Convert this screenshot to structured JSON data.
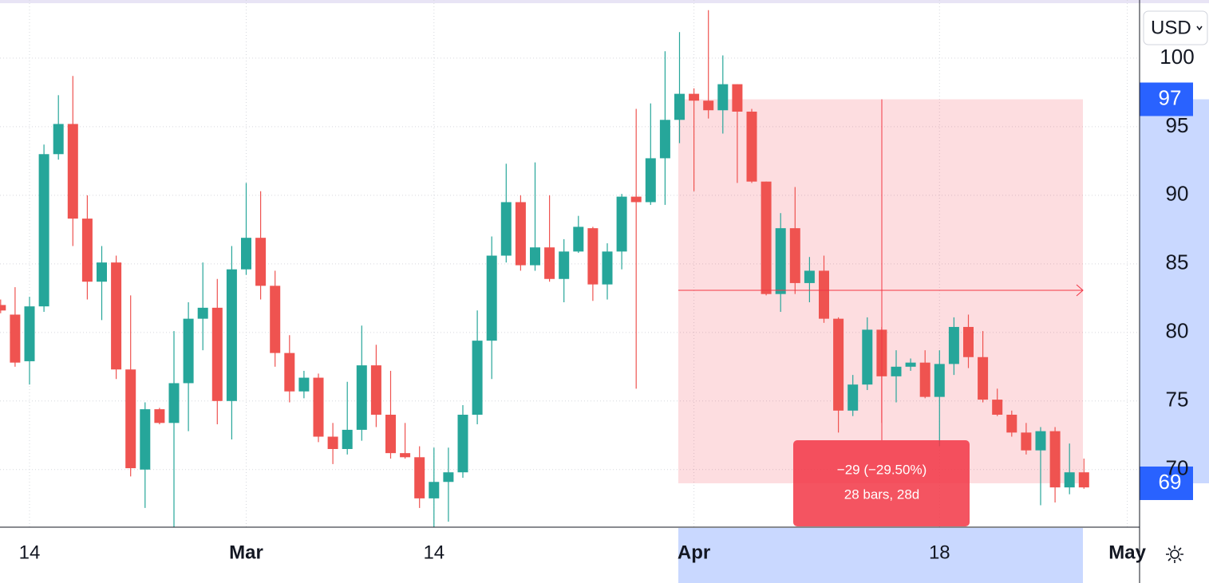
{
  "chart_data": {
    "type": "candlestick",
    "categories": [
      null,
      null,
      "14",
      null,
      null,
      null,
      null,
      null,
      null,
      null,
      null,
      null,
      null,
      null,
      null,
      null,
      null,
      "Mar",
      null,
      null,
      null,
      null,
      null,
      null,
      null,
      null,
      null,
      null,
      null,
      null,
      "14",
      null,
      null,
      null,
      null,
      null,
      null,
      null,
      null,
      null,
      null,
      null,
      null,
      null,
      null,
      null,
      null,
      null,
      "Apr",
      null,
      null,
      null,
      null,
      null,
      null,
      null,
      null,
      null,
      null,
      null,
      null,
      null,
      null,
      null,
      null,
      "18",
      null,
      null,
      null,
      null,
      null,
      null,
      null,
      null,
      null,
      null,
      null,
      null,
      "May"
    ],
    "open": [
      82.0,
      81.3,
      77.9,
      81.9,
      93.0,
      95.2,
      88.3,
      83.7,
      85.1,
      77.3,
      70.0,
      74.4,
      73.4,
      76.3,
      81.0,
      81.8,
      75.0,
      84.6,
      86.9,
      83.4,
      78.5,
      75.7,
      76.7,
      72.4,
      71.5,
      72.9,
      77.6,
      74.0,
      71.2,
      70.9,
      67.9,
      69.1,
      69.8,
      74.0,
      79.4,
      85.6,
      89.5,
      84.9,
      86.2,
      83.9,
      85.9,
      87.6,
      83.5,
      85.9,
      89.9,
      89.5,
      92.7,
      95.5,
      97.4,
      96.9,
      96.2,
      98.1,
      96.1,
      91.0,
      82.8,
      87.6,
      83.6,
      84.5,
      81.0,
      74.3,
      76.2,
      80.2,
      76.8,
      77.5,
      77.8,
      75.3,
      77.7,
      80.4,
      78.2,
      75.1,
      74.0,
      72.7,
      71.4,
      72.8,
      68.7,
      69.8,
      null,
      null,
      null
    ],
    "high": [
      82.4,
      83.3,
      82.6,
      93.7,
      97.3,
      98.7,
      90.0,
      86.3,
      85.6,
      82.7,
      74.9,
      74.5,
      80.1,
      82.2,
      85.1,
      83.9,
      86.3,
      90.9,
      90.3,
      84.5,
      79.8,
      77.2,
      77.0,
      73.4,
      76.4,
      80.5,
      79.1,
      77.2,
      73.4,
      71.7,
      71.6,
      71.6,
      74.7,
      81.6,
      87.0,
      92.3,
      90.0,
      92.4,
      90.0,
      86.8,
      88.5,
      87.7,
      86.5,
      90.1,
      96.3,
      96.7,
      100.5,
      101.9,
      97.8,
      103.5,
      100.2,
      98.1,
      96.3,
      91.0,
      88.7,
      90.6,
      85.5,
      85.6,
      81.1,
      76.9,
      81.1,
      80.4,
      78.7,
      78.1,
      78.7,
      78.7,
      81.1,
      81.3,
      80.1,
      75.9,
      74.3,
      73.4,
      73.1,
      73.1,
      71.9,
      70.8,
      null,
      null,
      null
    ],
    "low": [
      81.4,
      77.5,
      76.2,
      81.5,
      92.6,
      86.3,
      82.4,
      80.9,
      76.6,
      69.5,
      67.2,
      73.3,
      65.8,
      72.8,
      78.7,
      73.3,
      72.2,
      84.2,
      82.4,
      77.5,
      74.9,
      75.2,
      72.0,
      70.4,
      71.1,
      72.1,
      73.1,
      70.8,
      70.8,
      67.2,
      65.8,
      66.2,
      69.4,
      73.3,
      76.6,
      85.1,
      84.5,
      84.5,
      83.7,
      82.2,
      85.8,
      82.3,
      82.4,
      84.6,
      75.9,
      89.3,
      89.3,
      93.8,
      90.3,
      95.6,
      94.5,
      90.9,
      90.9,
      82.7,
      81.5,
      82.8,
      82.2,
      80.7,
      72.7,
      73.9,
      75.8,
      73.4,
      74.9,
      77.2,
      75.2,
      71.7,
      76.9,
      77.4,
      74.9,
      73.9,
      72.4,
      71.1,
      67.4,
      67.6,
      68.2,
      68.6,
      null,
      null,
      null
    ],
    "close": [
      81.6,
      77.8,
      81.9,
      93.0,
      95.2,
      88.3,
      83.7,
      85.1,
      77.3,
      70.1,
      74.4,
      73.4,
      76.3,
      81.0,
      81.8,
      75.0,
      84.6,
      86.9,
      83.4,
      78.5,
      75.7,
      76.7,
      72.4,
      71.5,
      72.9,
      77.6,
      74.0,
      71.2,
      70.9,
      67.9,
      69.1,
      69.8,
      74.0,
      79.4,
      85.6,
      89.5,
      84.9,
      86.2,
      83.9,
      85.9,
      87.7,
      83.5,
      85.9,
      89.9,
      89.5,
      92.7,
      95.5,
      97.4,
      96.9,
      96.2,
      98.1,
      96.1,
      91.0,
      82.8,
      87.6,
      83.6,
      84.5,
      81.0,
      74.3,
      76.2,
      80.2,
      76.8,
      77.5,
      77.8,
      75.3,
      77.7,
      80.4,
      78.2,
      75.1,
      74.0,
      72.7,
      71.4,
      72.8,
      68.7,
      69.8,
      68.7,
      null,
      null,
      null
    ],
    "up_color": "#26a69a",
    "down_color": "#ef5350",
    "ylim": [
      65.8,
      104.24
    ],
    "yticks": [
      70,
      75,
      80,
      85,
      90,
      95,
      100
    ],
    "grid": true,
    "currency": "USD",
    "measure": {
      "top": 97,
      "bottom": 69,
      "change": "−29 (−29.50%)",
      "span": "28 bars, 28d",
      "color": "#f23645"
    }
  }
}
